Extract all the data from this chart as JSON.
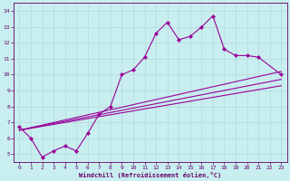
{
  "xlabel": "Windchill (Refroidissement éolien,°C)",
  "ylabel": "",
  "bg_color": "#c8eef0",
  "grid_color": "#aadddd",
  "line_color": "#990099",
  "marker": "D",
  "markersize": 2.2,
  "linewidth": 0.8,
  "xlim": [
    -0.5,
    23.5
  ],
  "ylim": [
    4.5,
    14.5
  ],
  "xticks": [
    0,
    1,
    2,
    3,
    4,
    5,
    6,
    7,
    8,
    9,
    10,
    11,
    12,
    13,
    14,
    15,
    16,
    17,
    18,
    19,
    20,
    21,
    22,
    23
  ],
  "yticks": [
    5,
    6,
    7,
    8,
    9,
    10,
    11,
    12,
    13,
    14
  ],
  "series": [
    {
      "x": [
        0,
        1,
        2,
        3,
        4,
        5,
        6,
        7,
        8,
        9,
        10,
        11,
        12,
        13,
        14,
        15,
        16,
        17,
        18,
        19,
        20,
        21,
        23
      ],
      "y": [
        6.7,
        6.0,
        4.8,
        5.2,
        5.5,
        5.2,
        6.3,
        7.5,
        8.0,
        10.0,
        10.3,
        11.1,
        12.6,
        13.3,
        12.2,
        12.4,
        13.0,
        13.7,
        11.6,
        11.2,
        11.2,
        11.1,
        10.0
      ]
    },
    {
      "x": [
        0,
        23
      ],
      "y": [
        6.5,
        10.2
      ]
    },
    {
      "x": [
        0,
        23
      ],
      "y": [
        6.5,
        9.7
      ]
    },
    {
      "x": [
        0,
        23
      ],
      "y": [
        6.5,
        9.3
      ]
    }
  ]
}
